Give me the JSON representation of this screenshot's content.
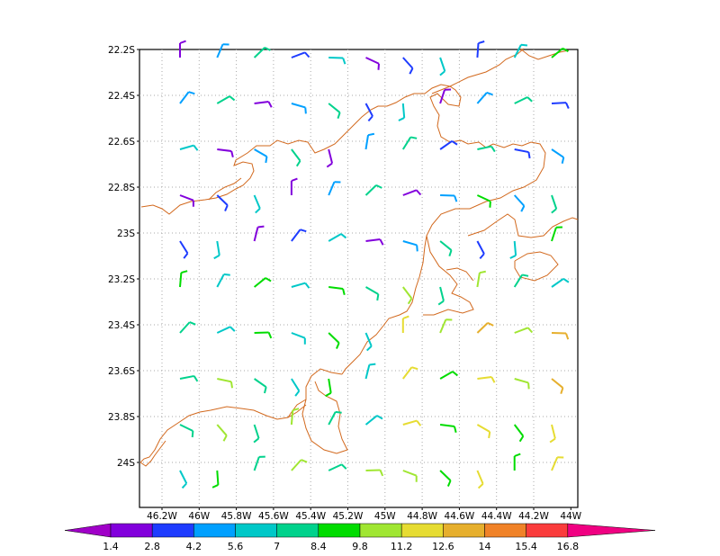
{
  "map": {
    "lat_ticks": [
      "22.2S",
      "22.4S",
      "22.6S",
      "22.8S",
      "23S",
      "23.2S",
      "23.4S",
      "23.6S",
      "23.8S",
      "24S"
    ],
    "lon_ticks": [
      "46.2W",
      "46W",
      "45.8W",
      "45.6W",
      "45.4W",
      "45.2W",
      "45W",
      "44.8W",
      "44.6W",
      "44.4W",
      "44.2W",
      "44W"
    ],
    "colors": {
      "frame": "#000000",
      "grid": "#aaaaaa",
      "coastline": "#d2691e"
    },
    "colorbar": {
      "labels": [
        "1.4",
        "2.8",
        "4.2",
        "5.6",
        "7",
        "8.4",
        "9.8",
        "11.2",
        "12.6",
        "14",
        "15.4",
        "16.8"
      ],
      "colors": [
        "#a000c8",
        "#8200dc",
        "#1e3cff",
        "#00a0ff",
        "#00c8c8",
        "#00d28c",
        "#00dc00",
        "#a0e632",
        "#e6dc32",
        "#e6af2d",
        "#f08228",
        "#fa3c3c",
        "#f00082"
      ]
    }
  }
}
